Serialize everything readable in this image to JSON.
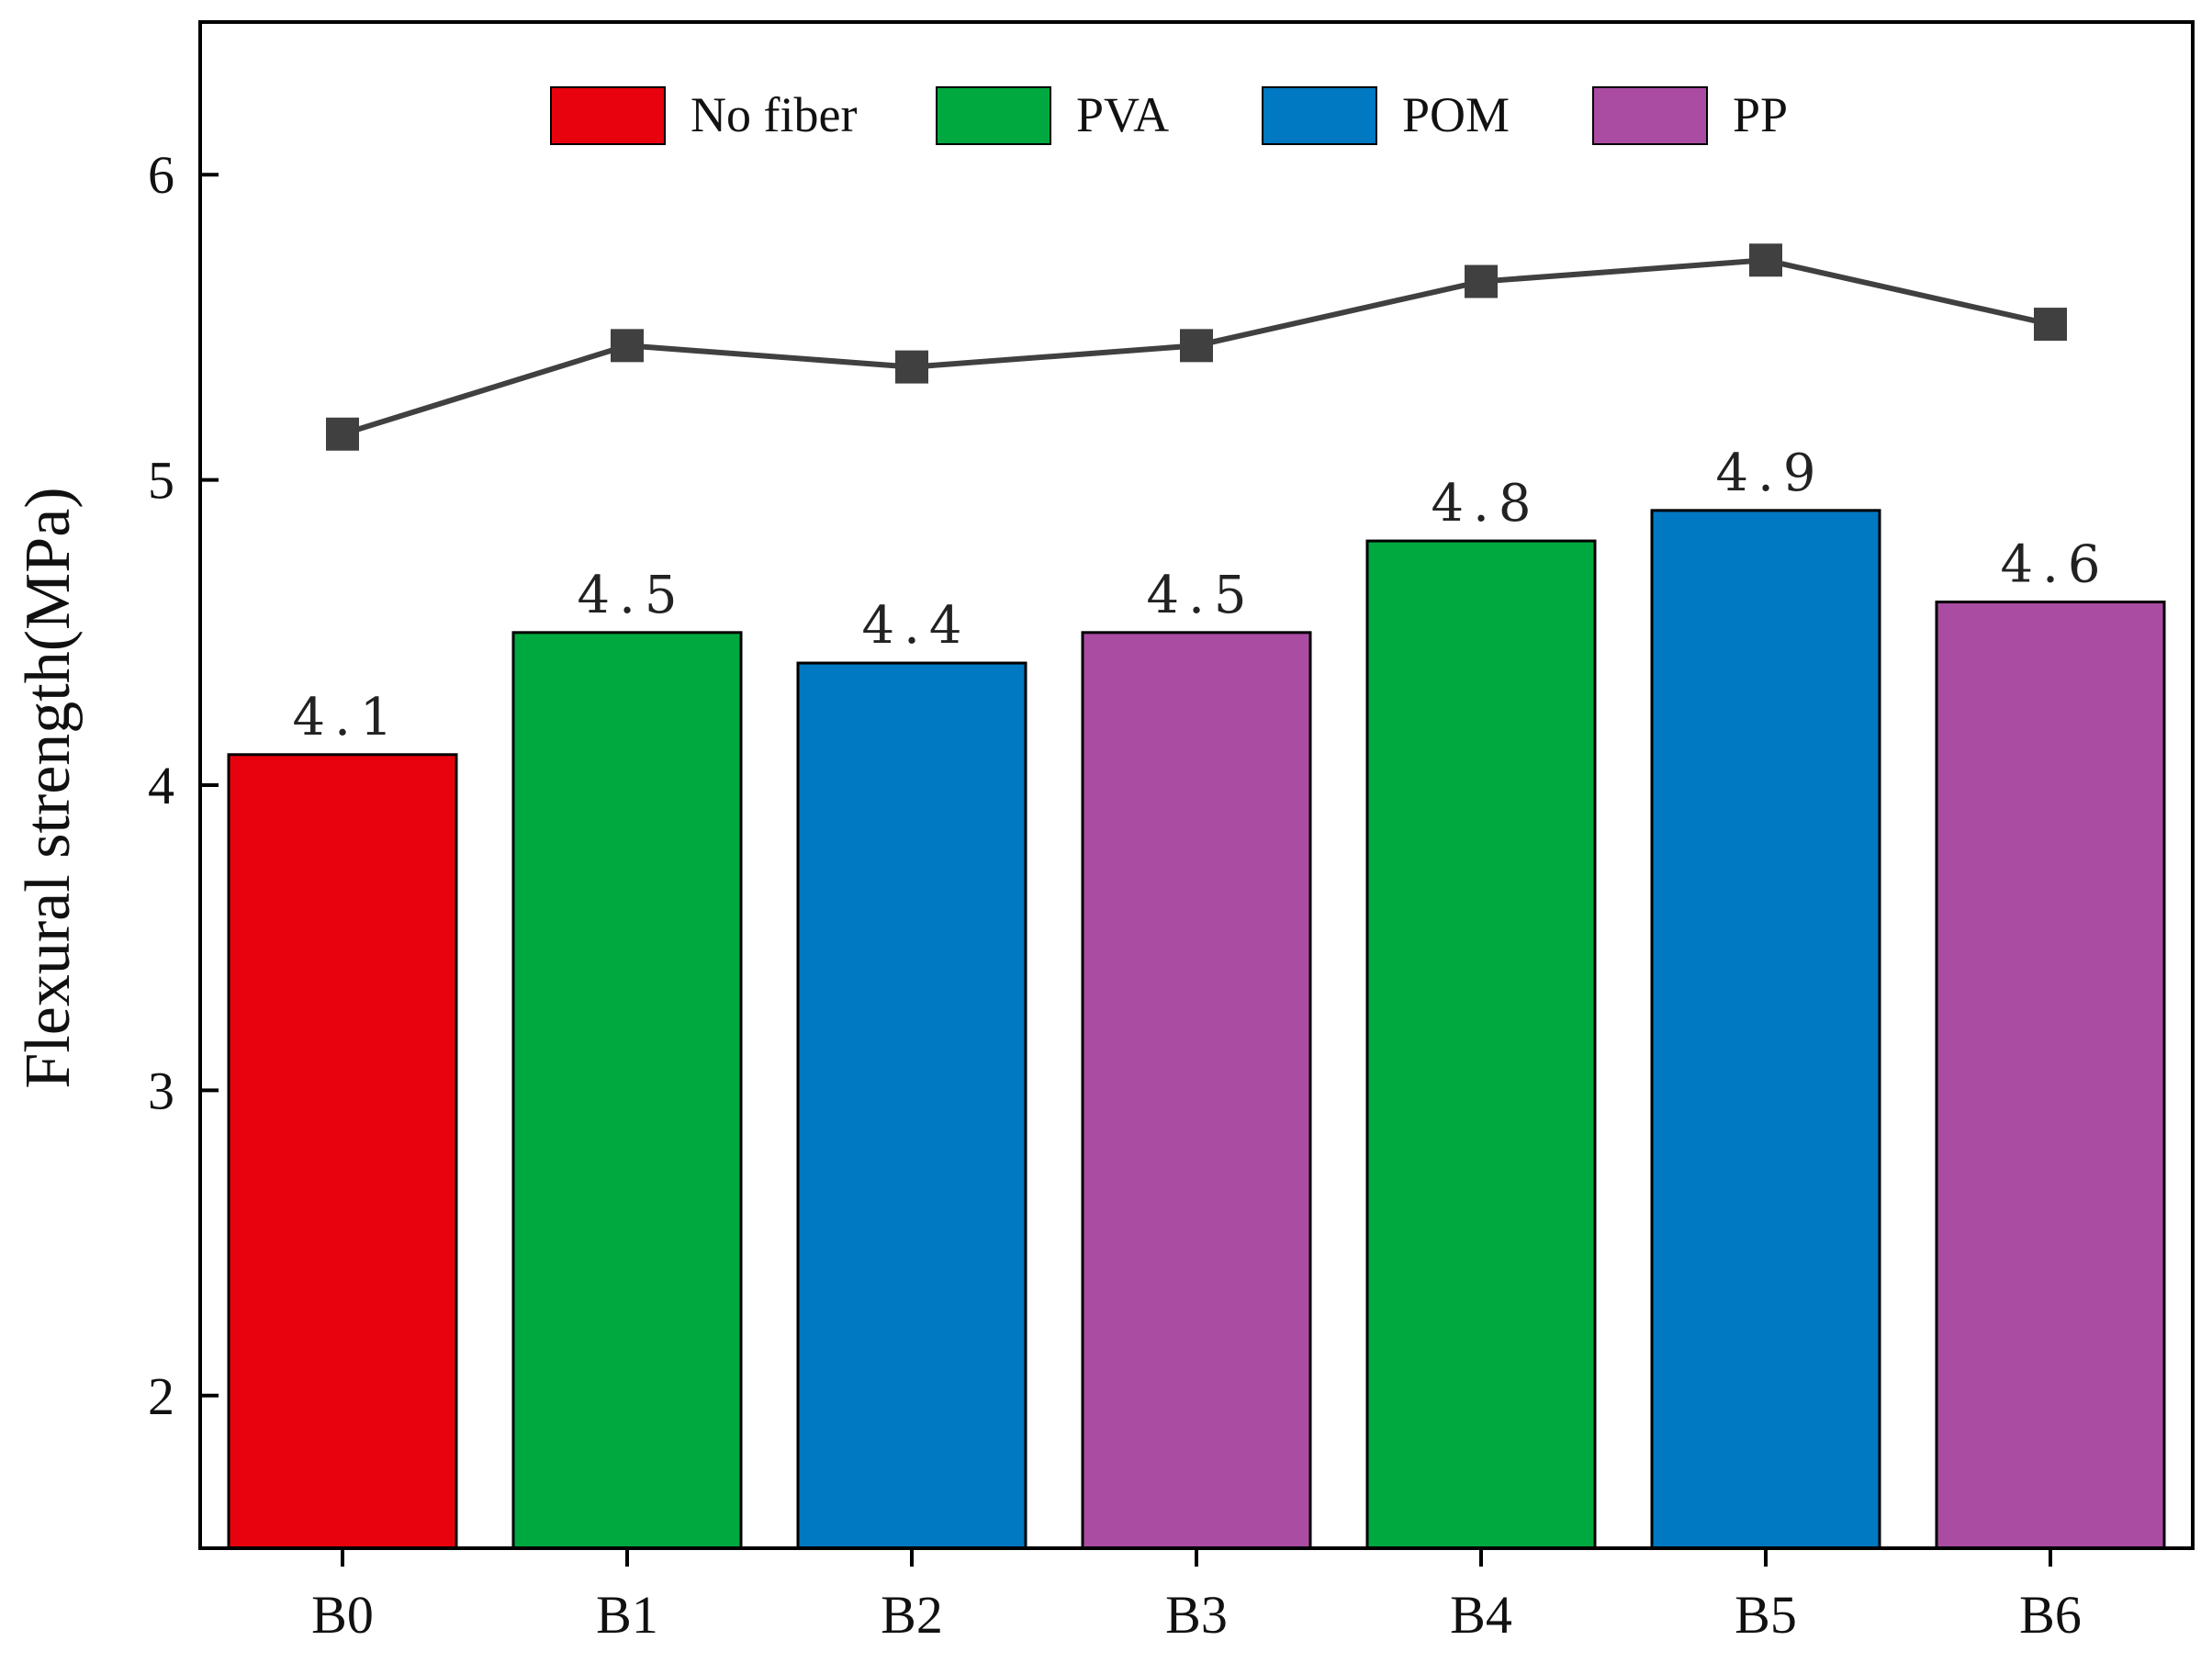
{
  "chart_data": {
    "type": "bar",
    "categories": [
      "B0",
      "B1",
      "B2",
      "B3",
      "B4",
      "B5",
      "B6"
    ],
    "values": [
      4.1,
      4.5,
      4.4,
      4.5,
      4.8,
      4.9,
      4.6
    ],
    "value_labels": [
      "4.1",
      "4.5",
      "4.4",
      "4.5",
      "4.8",
      "4.9",
      "4.6"
    ],
    "bar_groups": [
      "No fiber",
      "PVA",
      "POM",
      "PP",
      "PVA",
      "POM",
      "PP"
    ],
    "line_series": {
      "name": "",
      "values": [
        5.15,
        5.44,
        5.37,
        5.44,
        5.65,
        5.72,
        5.51
      ],
      "color": "#404040"
    },
    "legend": [
      {
        "label": "No fiber",
        "color": "#e8020d"
      },
      {
        "label": "PVA",
        "color": "#00a93f"
      },
      {
        "label": "POM",
        "color": "#0078c2"
      },
      {
        "label": "PP",
        "color": "#ab4ca3"
      }
    ],
    "legend_position": "top-center",
    "title": "",
    "xlabel": "",
    "ylabel": "Flexural strength(MPa)",
    "ylim": [
      1.5,
      6.5
    ],
    "yticks": [
      2,
      3,
      4,
      5,
      6
    ],
    "ytick_labels": [
      "2",
      "3",
      "4",
      "5",
      "6"
    ],
    "grid": false
  }
}
